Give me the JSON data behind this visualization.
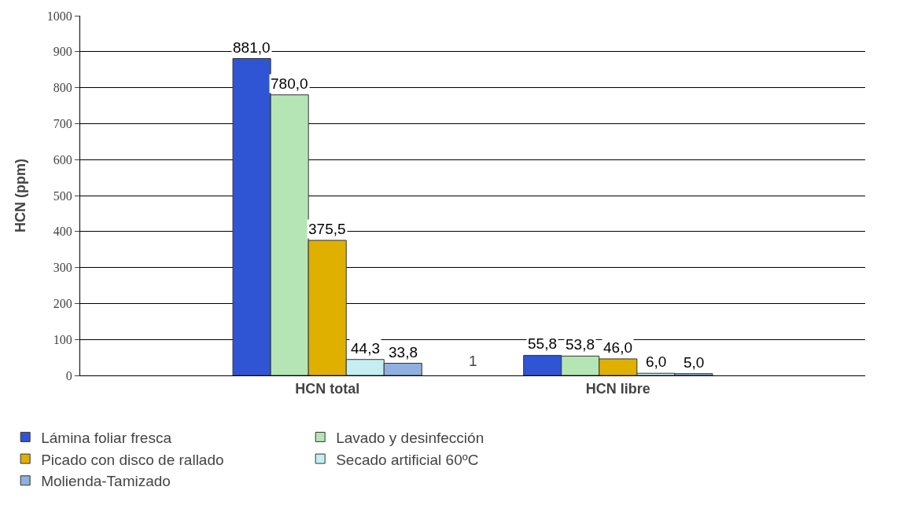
{
  "chart_data": {
    "type": "bar",
    "ylabel": "HCN (ppm)",
    "categories": [
      "HCN total",
      "HCN libre"
    ],
    "series": [
      {
        "name": "Lámina foliar fresca",
        "color": "#2f55d4",
        "values": [
          881.0,
          55.8
        ],
        "value_labels": [
          "881,0",
          "55,8"
        ]
      },
      {
        "name": "Lavado y desinfección",
        "color": "#b5e5b5",
        "values": [
          780.0,
          53.8
        ],
        "value_labels": [
          "780,0",
          "53,8"
        ]
      },
      {
        "name": "Picado con disco de rallado",
        "color": "#e0b000",
        "values": [
          375.5,
          46.0
        ],
        "value_labels": [
          "375,5",
          "46,0"
        ]
      },
      {
        "name": "Secado artificial 60ºC",
        "color": "#c6eef0",
        "values": [
          44.3,
          6.0
        ],
        "value_labels": [
          "44,3",
          "6,0"
        ]
      },
      {
        "name": "Molienda-Tamizado",
        "color": "#8fb0e0",
        "values": [
          33.8,
          5.0
        ],
        "value_labels": [
          "33,8",
          "5,0"
        ]
      }
    ],
    "ylim": [
      0,
      1000
    ],
    "yticks": [
      0,
      100,
      200,
      300,
      400,
      500,
      600,
      700,
      800,
      900,
      1000
    ],
    "grid": "y",
    "legend": "bottom",
    "annotations": [
      "1"
    ]
  }
}
